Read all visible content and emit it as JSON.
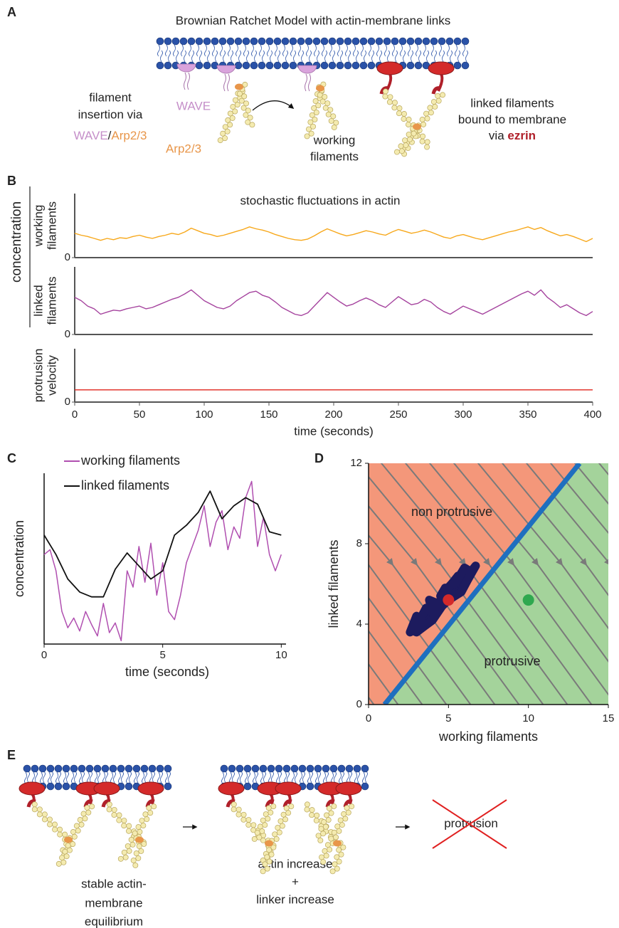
{
  "panel_labels": [
    "A",
    "B",
    "C",
    "D",
    "E"
  ],
  "panel_a": {
    "title": "Brownian Ratchet Model with actin-membrane links",
    "insertion_lines": [
      "filament",
      "insertion via"
    ],
    "insertion_wave": "WAVE",
    "insertion_slash": "/",
    "insertion_arp": "Arp2/3",
    "wave_label": "WAVE",
    "arp_label": "Arp2/3",
    "working_lines": [
      "working",
      "filaments"
    ],
    "linked_lines": [
      "linked filaments",
      "bound to membrane"
    ],
    "linked_via": "via ",
    "linked_ezrin": "ezrin"
  },
  "panel_e": {
    "stable_lines": [
      "stable actin-",
      "membrane",
      "equilibrium"
    ],
    "increase_lines": [
      "actin increase",
      "+",
      "linker increase"
    ],
    "protrusion": "protrusion"
  },
  "chart_data": [
    {
      "type": "line",
      "title": "stochastic fluctuations in actin",
      "ylabel": "concentration",
      "xlabel": "time (seconds)",
      "xlim": [
        0,
        400
      ],
      "xticks": [
        0,
        50,
        100,
        150,
        200,
        250,
        300,
        350,
        400
      ],
      "x": [
        0,
        5,
        10,
        15,
        20,
        25,
        30,
        35,
        40,
        45,
        50,
        55,
        60,
        65,
        70,
        75,
        80,
        85,
        90,
        95,
        100,
        105,
        110,
        115,
        120,
        125,
        130,
        135,
        140,
        145,
        150,
        155,
        160,
        165,
        170,
        175,
        180,
        185,
        190,
        195,
        200,
        205,
        210,
        215,
        220,
        225,
        230,
        235,
        240,
        245,
        250,
        255,
        260,
        265,
        270,
        275,
        280,
        285,
        290,
        295,
        300,
        305,
        310,
        315,
        320,
        325,
        330,
        335,
        340,
        345,
        350,
        355,
        360,
        365,
        370,
        375,
        380,
        385,
        390,
        395,
        400
      ],
      "subplots": [
        {
          "ylabel": [
            "working",
            "filaments"
          ],
          "ylim": [
            0,
            1
          ],
          "yticks": [
            0
          ],
          "color": "#f7a81b",
          "values": [
            0.38,
            0.35,
            0.33,
            0.3,
            0.27,
            0.3,
            0.28,
            0.31,
            0.3,
            0.33,
            0.35,
            0.32,
            0.3,
            0.33,
            0.35,
            0.38,
            0.36,
            0.4,
            0.46,
            0.42,
            0.38,
            0.36,
            0.33,
            0.35,
            0.38,
            0.41,
            0.44,
            0.48,
            0.45,
            0.43,
            0.4,
            0.36,
            0.33,
            0.3,
            0.28,
            0.27,
            0.29,
            0.34,
            0.4,
            0.45,
            0.41,
            0.37,
            0.34,
            0.36,
            0.39,
            0.42,
            0.4,
            0.37,
            0.35,
            0.4,
            0.44,
            0.41,
            0.38,
            0.4,
            0.43,
            0.4,
            0.36,
            0.32,
            0.3,
            0.34,
            0.36,
            0.33,
            0.3,
            0.28,
            0.31,
            0.34,
            0.37,
            0.4,
            0.42,
            0.45,
            0.48,
            0.44,
            0.47,
            0.42,
            0.38,
            0.34,
            0.36,
            0.33,
            0.29,
            0.25,
            0.3
          ]
        },
        {
          "ylabel": [
            "linked",
            "filaments"
          ],
          "ylim": [
            0,
            1
          ],
          "yticks": [
            0
          ],
          "color": "#a5439e",
          "values": [
            0.55,
            0.5,
            0.42,
            0.38,
            0.3,
            0.33,
            0.36,
            0.35,
            0.38,
            0.4,
            0.42,
            0.38,
            0.4,
            0.44,
            0.48,
            0.52,
            0.55,
            0.6,
            0.66,
            0.58,
            0.5,
            0.45,
            0.4,
            0.38,
            0.42,
            0.5,
            0.56,
            0.62,
            0.64,
            0.58,
            0.55,
            0.48,
            0.4,
            0.35,
            0.3,
            0.28,
            0.32,
            0.42,
            0.52,
            0.62,
            0.55,
            0.48,
            0.42,
            0.45,
            0.5,
            0.54,
            0.5,
            0.44,
            0.4,
            0.48,
            0.56,
            0.5,
            0.44,
            0.46,
            0.52,
            0.48,
            0.4,
            0.34,
            0.3,
            0.36,
            0.42,
            0.38,
            0.34,
            0.3,
            0.35,
            0.4,
            0.45,
            0.5,
            0.55,
            0.6,
            0.64,
            0.58,
            0.66,
            0.55,
            0.48,
            0.4,
            0.44,
            0.38,
            0.32,
            0.28,
            0.34
          ]
        },
        {
          "ylabel": [
            "protrusion",
            "velocity"
          ],
          "ylim": [
            0,
            1
          ],
          "yticks": [
            0
          ],
          "color": "#e0241b",
          "x": [
            0,
            400
          ],
          "values": [
            0.23,
            0.23
          ]
        }
      ]
    },
    {
      "type": "line",
      "xlabel": "time (seconds)",
      "ylabel": "concentration",
      "xlim": [
        0,
        10.2
      ],
      "xticks": [
        0,
        5,
        10
      ],
      "ylim": [
        0,
        1.05
      ],
      "series": [
        {
          "name": "working filaments",
          "color": "#b04fb0",
          "x": [
            0,
            0.25,
            0.5,
            0.75,
            1,
            1.25,
            1.5,
            1.75,
            2,
            2.25,
            2.5,
            2.75,
            3,
            3.25,
            3.5,
            3.75,
            4,
            4.25,
            4.5,
            4.75,
            5,
            5.25,
            5.5,
            5.75,
            6,
            6.25,
            6.5,
            6.75,
            7,
            7.25,
            7.5,
            7.75,
            8,
            8.25,
            8.5,
            8.75,
            9,
            9.25,
            9.5,
            9.75,
            10
          ],
          "values": [
            0.55,
            0.58,
            0.45,
            0.2,
            0.1,
            0.16,
            0.08,
            0.2,
            0.12,
            0.05,
            0.25,
            0.07,
            0.13,
            0.02,
            0.45,
            0.35,
            0.6,
            0.38,
            0.62,
            0.3,
            0.5,
            0.2,
            0.15,
            0.3,
            0.5,
            0.6,
            0.7,
            0.85,
            0.6,
            0.75,
            0.82,
            0.58,
            0.72,
            0.65,
            0.9,
            1.0,
            0.6,
            0.78,
            0.55,
            0.45,
            0.55
          ]
        },
        {
          "name": "linked filaments",
          "color": "#111111",
          "x": [
            0,
            0.5,
            1,
            1.5,
            2,
            2.5,
            3,
            3.5,
            4,
            4.5,
            5,
            5.5,
            6,
            6.5,
            7,
            7.5,
            8,
            8.5,
            9,
            9.5,
            10
          ],
          "values": [
            0.67,
            0.55,
            0.4,
            0.32,
            0.29,
            0.29,
            0.46,
            0.56,
            0.48,
            0.4,
            0.45,
            0.67,
            0.73,
            0.81,
            0.94,
            0.77,
            0.85,
            0.9,
            0.86,
            0.69,
            0.67
          ]
        }
      ]
    },
    {
      "type": "phase",
      "xlabel": "working filaments",
      "ylabel": "linked filaments",
      "xlim": [
        0,
        15
      ],
      "ylim": [
        0,
        12
      ],
      "xticks": [
        0,
        5,
        10,
        15
      ],
      "yticks": [
        0,
        4,
        8,
        12
      ],
      "regions": [
        {
          "label": "non protrusive",
          "color": "#f4977a"
        },
        {
          "label": "protrusive",
          "color": "#a4d39b"
        }
      ],
      "boundary": {
        "color": "#1f6fbf",
        "x": [
          1,
          13.2
        ],
        "y": [
          0,
          12
        ]
      },
      "trajectory": {
        "color": "#1d1b5e",
        "x": [
          2.6,
          3.0,
          3.3,
          3.0,
          3.6,
          4.0,
          3.8,
          4.4,
          4.8,
          4.5,
          5.2,
          5.6,
          5.4,
          6.0,
          6.4,
          6.7,
          6.2,
          5.8,
          5.0,
          4.6,
          4.0,
          3.5,
          3.0,
          2.7
        ],
        "y": [
          3.6,
          4.4,
          4.2,
          3.9,
          4.8,
          4.6,
          5.2,
          5.0,
          5.8,
          5.4,
          6.0,
          6.4,
          6.0,
          6.8,
          6.6,
          6.9,
          6.2,
          5.6,
          5.2,
          4.9,
          4.2,
          3.9,
          3.6,
          3.7
        ]
      },
      "points": [
        {
          "x": 5,
          "y": 5.2,
          "color": "#d32a2a"
        },
        {
          "x": 10,
          "y": 5.2,
          "color": "#2fa84f"
        }
      ]
    }
  ]
}
